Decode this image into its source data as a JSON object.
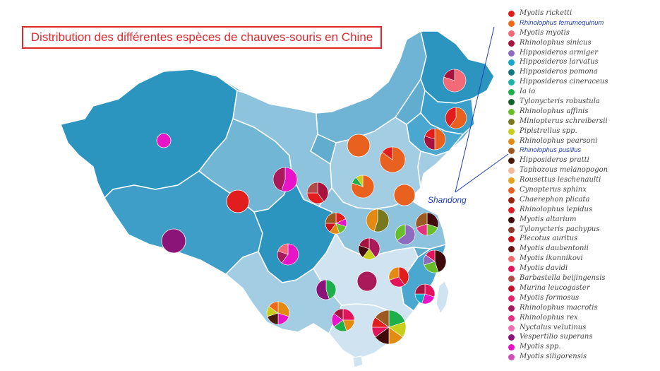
{
  "title": "Distribution des différentes espèces de chauves-souris en Chine",
  "callout": "Shandong",
  "legend": [
    {
      "name": "Myotis ricketti",
      "color": "#e11d1d",
      "highlight": false
    },
    {
      "name": "Rhinolophus ferrumequinum",
      "color": "#ee6a1a",
      "highlight": true
    },
    {
      "name": "Myotis myotis",
      "color": "#f26a78",
      "highlight": false
    },
    {
      "name": "Rhinolophus sinicus",
      "color": "#a8123e",
      "highlight": false
    },
    {
      "name": "Hipposideros armiger",
      "color": "#8e6bbf",
      "highlight": false
    },
    {
      "name": "Hipposideros larvatus",
      "color": "#16a7c9",
      "highlight": false
    },
    {
      "name": "Hipposideros pomona",
      "color": "#15777f",
      "highlight": false
    },
    {
      "name": "Hipposideros cineraceus",
      "color": "#1fb5a6",
      "highlight": false
    },
    {
      "name": "Ia io",
      "color": "#1fae4c",
      "highlight": false
    },
    {
      "name": "Tylonycteris robustula",
      "color": "#15622b",
      "highlight": false
    },
    {
      "name": "Rhinolophus affinis",
      "color": "#67bd2a",
      "highlight": false
    },
    {
      "name": "Miniopterus schreibersii",
      "color": "#78791e",
      "highlight": false
    },
    {
      "name": "Pipistrellus spp.",
      "color": "#c7cf1a",
      "highlight": false
    },
    {
      "name": "Rhinolophus pearsoni",
      "color": "#e38a12",
      "highlight": false
    },
    {
      "name": "Rhinolophus pusillus",
      "color": "#9c5a22",
      "highlight": true
    },
    {
      "name": "Hipposideros pratti",
      "color": "#4a1a0a",
      "highlight": false
    },
    {
      "name": "Taphozous melanopogon",
      "color": "#f5b99a",
      "highlight": false
    },
    {
      "name": "Rousettus leschenaulti",
      "color": "#e5a11c",
      "highlight": false
    },
    {
      "name": "Cynopterus sphinx",
      "color": "#e8611f",
      "highlight": false
    },
    {
      "name": "Chaerephon plicata",
      "color": "#9e2314",
      "highlight": false
    },
    {
      "name": "Rhinolophus lepidus",
      "color": "#dc1f26",
      "highlight": false
    },
    {
      "name": "Myotis altarium",
      "color": "#3f0b0b",
      "highlight": false
    },
    {
      "name": "Tylonycteris pachypus",
      "color": "#8c3a2e",
      "highlight": false
    },
    {
      "name": "Plecotus auritus",
      "color": "#c9141c",
      "highlight": false
    },
    {
      "name": "Myotis daubentonii",
      "color": "#6e1414",
      "highlight": false
    },
    {
      "name": "Myotis ikonnikovi",
      "color": "#f06b6b",
      "highlight": false
    },
    {
      "name": "Myotis davidi",
      "color": "#e2155a",
      "highlight": false
    },
    {
      "name": "Barbastella beijingensis",
      "color": "#b24a4a",
      "highlight": false
    },
    {
      "name": "Murina leucogaster",
      "color": "#c2142e",
      "highlight": false
    },
    {
      "name": "Myotis formosus",
      "color": "#e6246e",
      "highlight": false
    },
    {
      "name": "Rhinolophus macrotis",
      "color": "#a81a5a",
      "highlight": false
    },
    {
      "name": "Rhinolophus rex",
      "color": "#e3307f",
      "highlight": false
    },
    {
      "name": "Nyctalus velutinus",
      "color": "#f06fb3",
      "highlight": false
    },
    {
      "name": "Vespertilio superans",
      "color": "#8a1478",
      "highlight": false
    },
    {
      "name": "Myotis spp.",
      "color": "#e815c8",
      "highlight": false
    },
    {
      "name": "Myotis siligorensis",
      "color": "#d24fb9",
      "highlight": false
    }
  ],
  "colors": {
    "land_dark": "#2b95c0",
    "land_mid": "#60add0",
    "land_light": "#a3cde3",
    "land_pale": "#cfe4f0",
    "border": "#ffffff",
    "callout": "#1f3fb5"
  }
}
